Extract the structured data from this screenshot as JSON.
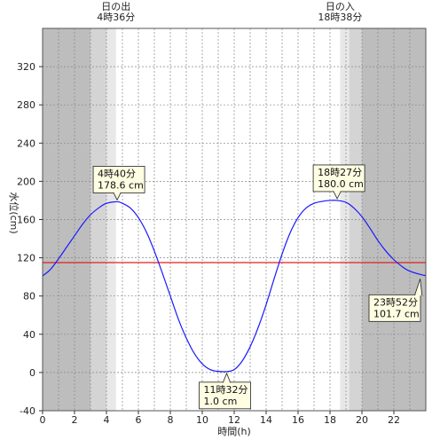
{
  "chart_data": {
    "type": "line",
    "xlabel": "時間(h)",
    "ylabel": "水位(cm)",
    "xlim": [
      0,
      24
    ],
    "ylim": [
      -40,
      360
    ],
    "xticks": [
      0,
      2,
      4,
      6,
      8,
      10,
      12,
      14,
      16,
      18,
      20,
      22
    ],
    "yticks": [
      -40,
      0,
      40,
      80,
      120,
      160,
      200,
      240,
      280,
      320
    ],
    "reference_line": {
      "y": 115,
      "color": "#e02020"
    },
    "line_color": "#1a1aff",
    "series": [
      {
        "x": [
          0,
          0.5,
          1,
          1.5,
          2,
          2.5,
          3,
          3.5,
          4,
          4.67,
          5,
          5.5,
          6,
          6.5,
          7,
          7.5,
          8,
          8.5,
          9,
          9.5,
          10,
          10.5,
          11,
          11.53,
          12,
          12.5,
          13,
          13.5,
          14,
          14.5,
          15,
          15.5,
          16,
          16.5,
          17,
          17.5,
          18,
          18.45,
          19,
          19.5,
          20,
          20.5,
          21,
          21.5,
          22,
          22.5,
          23,
          23.87,
          24
        ],
        "y": [
          101,
          108,
          119,
          131,
          143,
          155,
          165,
          172,
          177,
          178.6,
          177,
          172,
          162,
          147,
          127,
          104,
          80,
          56,
          36,
          20,
          9,
          3,
          1.2,
          1.0,
          3,
          12,
          27,
          47,
          71,
          98,
          124,
          146,
          162,
          172,
          177,
          179,
          180,
          180.0,
          178,
          172,
          163,
          151,
          138,
          127,
          118,
          111,
          106,
          101.7,
          102
        ]
      }
    ],
    "background_shading": [
      {
        "from": 0,
        "to": 3.0,
        "color": "#bdbdbd"
      },
      {
        "from": 3.0,
        "to": 4.0,
        "color": "#d4d4d4"
      },
      {
        "from": 4.0,
        "to": 4.6,
        "color": "#e8e8e8"
      },
      {
        "from": 4.6,
        "to": 18.63,
        "color": "#ffffff"
      },
      {
        "from": 18.63,
        "to": 19.2,
        "color": "#e8e8e8"
      },
      {
        "from": 19.2,
        "to": 20.0,
        "color": "#d4d4d4"
      },
      {
        "from": 20.0,
        "to": 24,
        "color": "#bdbdbd"
      }
    ],
    "sun_events": [
      {
        "x": 4.6,
        "label": "日の出",
        "time": "4時36分"
      },
      {
        "x": 18.63,
        "label": "日の入",
        "time": "18時38分"
      }
    ],
    "annotations": [
      {
        "x": 4.67,
        "y": 178.6,
        "time": "4時40分",
        "value": "178.6 cm",
        "pos": "above"
      },
      {
        "x": 11.53,
        "y": 1.0,
        "time": "11時32分",
        "value": "1.0 cm",
        "pos": "below"
      },
      {
        "x": 18.45,
        "y": 180.0,
        "time": "18時27分",
        "value": "180.0 cm",
        "pos": "above"
      },
      {
        "x": 23.87,
        "y": 101.7,
        "time": "23時52分",
        "value": "101.7 cm",
        "pos": "below-left"
      }
    ]
  }
}
